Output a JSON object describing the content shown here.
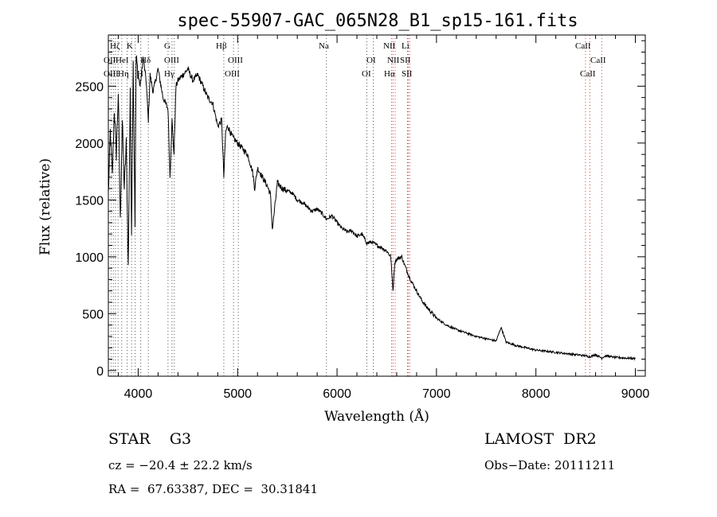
{
  "chart_data": {
    "type": "line",
    "title": "spec-55907-GAC_065N28_B1_sp15-161.fits",
    "xlabel": "Wavelength (Å)",
    "ylabel": "Flux (relative)",
    "xlim": [
      3700,
      9100
    ],
    "ylim": [
      -50,
      2950
    ],
    "xticks": [
      "4000",
      "5000",
      "6000",
      "7000",
      "8000",
      "9000"
    ],
    "yticks": [
      "0",
      "500",
      "1000",
      "1500",
      "2000",
      "2500"
    ],
    "series": [
      {
        "name": "flux",
        "x": [
          3700,
          3720,
          3740,
          3760,
          3780,
          3800,
          3820,
          3840,
          3860,
          3880,
          3900,
          3920,
          3933,
          3950,
          3968,
          3980,
          4000,
          4020,
          4050,
          4080,
          4102,
          4120,
          4150,
          4200,
          4250,
          4300,
          4320,
          4340,
          4360,
          4380,
          4400,
          4450,
          4500,
          4550,
          4600,
          4650,
          4700,
          4750,
          4800,
          4840,
          4861,
          4880,
          4900,
          4950,
          5000,
          5050,
          5100,
          5150,
          5172,
          5200,
          5250,
          5300,
          5330,
          5350,
          5400,
          5450,
          5500,
          5550,
          5600,
          5650,
          5700,
          5750,
          5800,
          5850,
          5893,
          5950,
          6000,
          6050,
          6100,
          6150,
          6200,
          6250,
          6300,
          6350,
          6400,
          6450,
          6500,
          6540,
          6563,
          6580,
          6600,
          6650,
          6700,
          6750,
          6800,
          6850,
          6900,
          6950,
          7000,
          7100,
          7200,
          7300,
          7400,
          7500,
          7600,
          7650,
          7700,
          7800,
          7900,
          8000,
          8100,
          8200,
          8300,
          8400,
          8500,
          8542,
          8600,
          8662,
          8700,
          8800,
          8900,
          9000
        ],
        "y": [
          1550,
          2100,
          1700,
          2300,
          1900,
          2450,
          1300,
          2200,
          1600,
          2000,
          900,
          2500,
          1200,
          2700,
          1300,
          2750,
          2600,
          2500,
          2750,
          2550,
          2200,
          2600,
          2450,
          2650,
          2400,
          2300,
          1700,
          2200,
          1900,
          2500,
          2550,
          2600,
          2650,
          2550,
          2600,
          2500,
          2400,
          2350,
          2150,
          2200,
          1700,
          2100,
          2150,
          2050,
          2000,
          1950,
          1900,
          1750,
          1600,
          1780,
          1700,
          1620,
          1550,
          1240,
          1650,
          1600,
          1580,
          1560,
          1500,
          1480,
          1440,
          1400,
          1420,
          1380,
          1330,
          1360,
          1300,
          1250,
          1220,
          1230,
          1180,
          1200,
          1120,
          1130,
          1100,
          1080,
          1050,
          1000,
          700,
          950,
          980,
          1000,
          880,
          780,
          700,
          620,
          560,
          510,
          460,
          400,
          360,
          330,
          300,
          280,
          260,
          380,
          250,
          220,
          200,
          180,
          170,
          160,
          150,
          140,
          130,
          120,
          140,
          110,
          130,
          115,
          110,
          105
        ]
      }
    ],
    "lines_blue": [
      "OII",
      "HeI",
      "Hε",
      "Hδ",
      "Hγ",
      "Hβ",
      "OIII",
      "Na",
      "OI",
      "NII",
      "Hα",
      "SII",
      "Li",
      "CaII"
    ],
    "line_labels": [
      "Hζ",
      "K",
      "OII",
      "HeI",
      "OIII",
      "Hη",
      "H",
      "Hδ",
      "G",
      "OIII",
      "Hγ",
      "Hβ",
      "OIII",
      "OIII",
      "Na",
      "OI",
      "OI",
      "NII",
      "NII",
      "SII",
      "Li",
      "Hα",
      "SII",
      "CaII",
      "CaII",
      "CaII"
    ]
  },
  "info": {
    "object": "STAR    G3",
    "survey": "LAMOST  DR2",
    "cz": "cz = −20.4 ± 22.2 km/s",
    "obsdate": "Obs−Date: 20111211",
    "coords": "RA =  67.63387, DEC =  30.31841"
  }
}
